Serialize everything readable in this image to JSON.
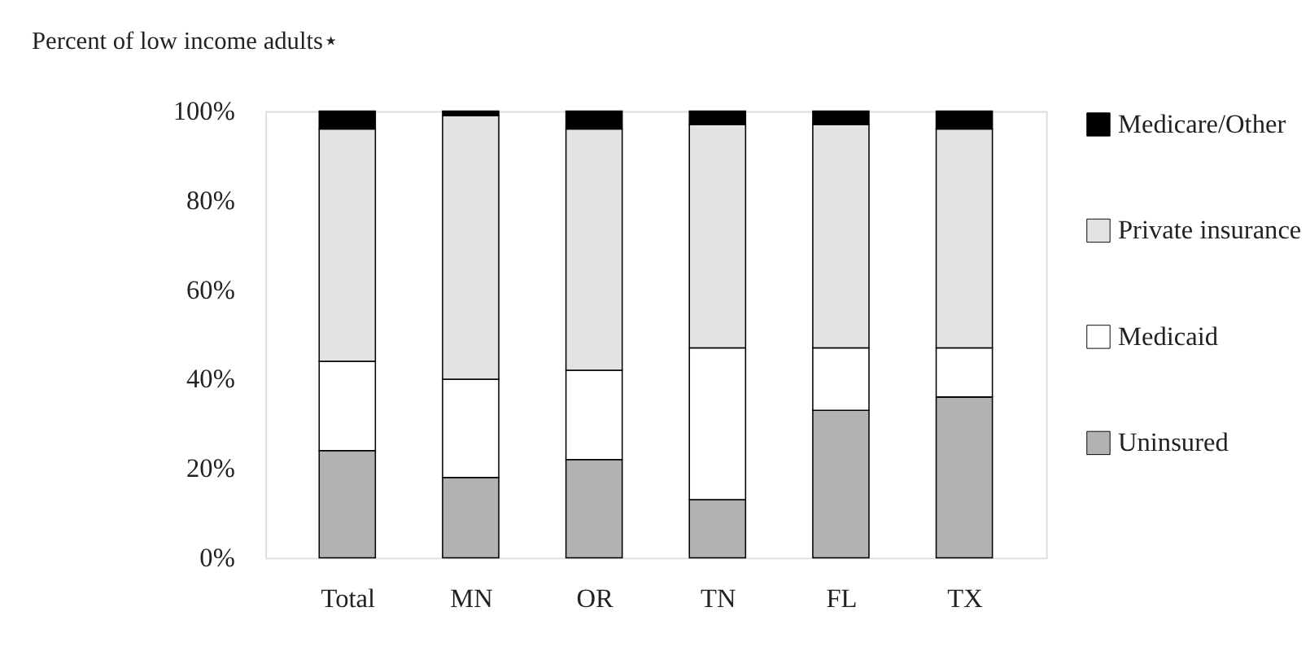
{
  "chart_data": {
    "type": "bar",
    "title": "Percent of low income adults⋆",
    "stacked": true,
    "categories": [
      "Total",
      "MN",
      "OR",
      "TN",
      "FL",
      "TX"
    ],
    "series": [
      {
        "name": "Uninsured",
        "color": "#b2b2b2",
        "values": [
          24,
          18,
          22,
          13,
          33,
          36
        ]
      },
      {
        "name": "Medicaid",
        "color": "#ffffff",
        "values": [
          20,
          22,
          20,
          34,
          14,
          11
        ]
      },
      {
        "name": "Private insurance",
        "color": "#e3e3e3",
        "values": [
          52,
          59,
          54,
          50,
          50,
          49
        ]
      },
      {
        "name": "Medicare/Other",
        "color": "#000000",
        "values": [
          4,
          1,
          4,
          3,
          3,
          4
        ]
      }
    ],
    "ylim": [
      0,
      100
    ],
    "yticks": [
      {
        "value": 0,
        "label": "0%"
      },
      {
        "value": 20,
        "label": "20%"
      },
      {
        "value": 40,
        "label": "40%"
      },
      {
        "value": 60,
        "label": "60%"
      },
      {
        "value": 80,
        "label": "80%"
      },
      {
        "value": 100,
        "label": "100%"
      }
    ],
    "grid": false,
    "legend": "right"
  }
}
